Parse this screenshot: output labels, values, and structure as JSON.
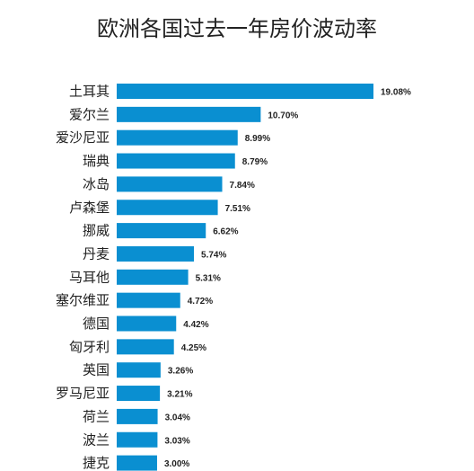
{
  "chart_data": {
    "type": "bar",
    "orientation": "horizontal",
    "title": "欧洲各国过去一年房价波动率",
    "categories": [
      "土耳其",
      "爱尔兰",
      "爱沙尼亚",
      "瑞典",
      "冰岛",
      "卢森堡",
      "挪威",
      "丹麦",
      "马耳他",
      "塞尔维亚",
      "德国",
      "匈牙利",
      "英国",
      "罗马尼亚",
      "荷兰",
      "波兰",
      "捷克"
    ],
    "values": [
      19.08,
      10.7,
      8.99,
      8.79,
      7.84,
      7.51,
      6.62,
      5.74,
      5.31,
      4.72,
      4.42,
      4.25,
      3.26,
      3.21,
      3.04,
      3.03,
      3.0
    ],
    "value_labels": [
      "19.08%",
      "10.70%",
      "8.99%",
      "8.79%",
      "7.84%",
      "7.51%",
      "6.62%",
      "5.74%",
      "5.31%",
      "4.72%",
      "4.42%",
      "4.25%",
      "3.26%",
      "3.21%",
      "3.04%",
      "3.03%",
      "3.00%"
    ],
    "bar_color": "#0a8fd1",
    "grid": false,
    "legend": "none"
  }
}
